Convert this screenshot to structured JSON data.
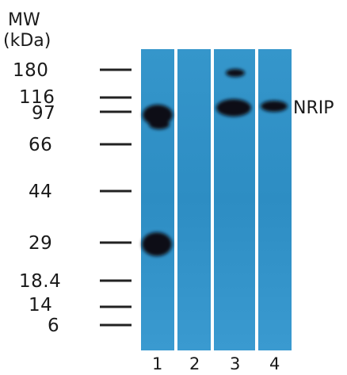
{
  "figure": {
    "mw_header_line1": "MW",
    "mw_header_line2": "(kDa)",
    "protein_label": "NRIP"
  },
  "markers": [
    {
      "label": "180",
      "kda": 180
    },
    {
      "label": "116",
      "kda": 116
    },
    {
      "label": "97",
      "kda": 97
    },
    {
      "label": "66",
      "kda": 66
    },
    {
      "label": "44",
      "kda": 44
    },
    {
      "label": "29",
      "kda": 29
    },
    {
      "label": "18.4",
      "kda": 18.4
    },
    {
      "label": "14",
      "kda": 14
    },
    {
      "label": "6",
      "kda": 6
    }
  ],
  "lanes": [
    {
      "label": "1"
    },
    {
      "label": "2"
    },
    {
      "label": "3"
    },
    {
      "label": "4"
    }
  ],
  "colors": {
    "membrane": "#2f90c6",
    "membrane_light": "#4ea6d8",
    "band": "#0a0d12",
    "separator": "#ffffff"
  }
}
